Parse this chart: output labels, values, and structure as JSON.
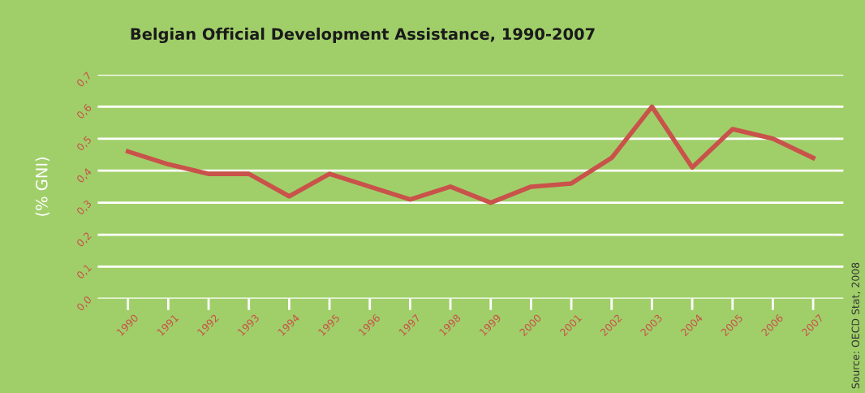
{
  "chart_data": {
    "type": "line",
    "title": "Belgian Official Development Assistance, 1990-2007",
    "ylabel": "(% GNI)",
    "categories": [
      "1990",
      "1991",
      "1992",
      "1993",
      "1994",
      "1995",
      "1996",
      "1997",
      "1998",
      "1999",
      "2000",
      "2001",
      "2002",
      "2003",
      "2004",
      "2005",
      "2006",
      "2007"
    ],
    "series": [
      {
        "color": "#c9524a",
        "values": [
          0.46,
          0.42,
          0.39,
          0.39,
          0.32,
          0.39,
          0.35,
          0.31,
          0.35,
          0.3,
          0.35,
          0.36,
          0.44,
          0.6,
          0.41,
          0.53,
          0.5,
          0.44
        ]
      }
    ],
    "ylim": [
      0,
      0.7
    ],
    "yticks": [
      {
        "value": 0,
        "label": "0,0"
      },
      {
        "value": 0.1,
        "label": "0,1"
      },
      {
        "value": 0.2,
        "label": "0,2"
      },
      {
        "value": 0.3,
        "label": "0,3"
      },
      {
        "value": 0.4,
        "label": "0,4"
      },
      {
        "value": 0.5,
        "label": "0,5"
      },
      {
        "value": 0.6,
        "label": "0,6"
      },
      {
        "value": 0.7,
        "label": "0,7"
      }
    ],
    "grid": "y",
    "marker": "none",
    "line_style": "solid",
    "annotations": [
      "Source: OECD Stat, 2008"
    ]
  }
}
